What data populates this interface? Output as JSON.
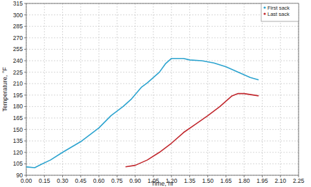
{
  "chart_data": {
    "type": "line",
    "x_label": "Time, hr",
    "y_label": "Temperature, °F",
    "xlim": [
      0,
      2.25
    ],
    "ylim": [
      90,
      315
    ],
    "xticks": [
      {
        "value": 0,
        "label": "0.00"
      },
      {
        "value": 0.15,
        "label": "0.15"
      },
      {
        "value": 0.3,
        "label": "0.30"
      },
      {
        "value": 0.45,
        "label": "0.45"
      },
      {
        "value": 0.6,
        "label": "0.60"
      },
      {
        "value": 0.75,
        "label": "0.75"
      },
      {
        "value": 0.9,
        "label": "0.90"
      },
      {
        "value": 1.05,
        "label": "1.05"
      },
      {
        "value": 1.2,
        "label": "1.20"
      },
      {
        "value": 1.35,
        "label": "1.35"
      },
      {
        "value": 1.5,
        "label": "1.50"
      },
      {
        "value": 1.65,
        "label": "1.65"
      },
      {
        "value": 1.8,
        "label": "1.80"
      },
      {
        "value": 1.95,
        "label": "1.95"
      },
      {
        "value": 2.1,
        "label": "2.10"
      },
      {
        "value": 2.25,
        "label": "2.25"
      }
    ],
    "yticks": [
      90,
      105,
      120,
      135,
      150,
      165,
      180,
      195,
      210,
      225,
      240,
      255,
      270,
      285,
      300,
      315
    ],
    "grid": true,
    "legend": "top-right",
    "series": [
      {
        "name": "First sack",
        "color": "#2ba3cf",
        "x": [
          0.0,
          0.07,
          0.12,
          0.2,
          0.3,
          0.45,
          0.6,
          0.7,
          0.8,
          0.87,
          0.95,
          1.0,
          1.1,
          1.15,
          1.2,
          1.3,
          1.35,
          1.45,
          1.55,
          1.65,
          1.75,
          1.85,
          1.92
        ],
        "values": [
          101,
          100,
          104,
          110,
          120,
          134,
          152,
          168,
          180,
          190,
          205,
          211,
          225,
          236,
          243,
          243,
          241,
          240,
          237,
          232,
          225,
          218,
          215
        ]
      },
      {
        "name": "Last sack",
        "color": "#c1272d",
        "x": [
          0.82,
          0.9,
          1.0,
          1.1,
          1.2,
          1.3,
          1.4,
          1.5,
          1.6,
          1.7,
          1.75,
          1.8,
          1.92
        ],
        "values": [
          101,
          103,
          110,
          120,
          132,
          146,
          157,
          168,
          180,
          194,
          197,
          197,
          194
        ]
      }
    ]
  }
}
